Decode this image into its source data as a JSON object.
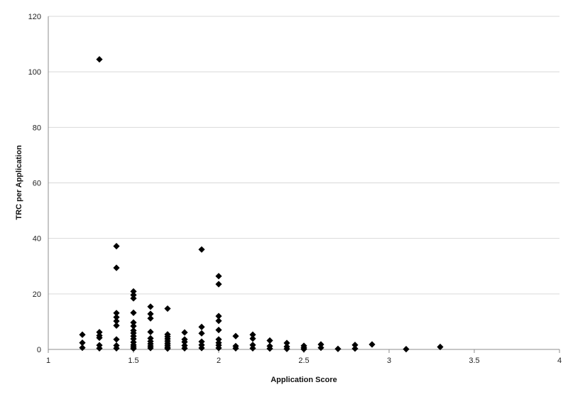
{
  "chart_data": {
    "type": "scatter",
    "title": "",
    "xlabel": "Application Score",
    "ylabel": "TRC per Application",
    "xlim": [
      1,
      4
    ],
    "ylim": [
      0,
      120
    ],
    "xticks": [
      1,
      1.5,
      2,
      2.5,
      3,
      3.5,
      4
    ],
    "xtick_labels": [
      "1",
      "1.5",
      "2",
      "2.5",
      "3",
      "3.5",
      "4"
    ],
    "yticks": [
      0,
      20,
      40,
      60,
      80,
      100,
      120
    ],
    "ytick_labels": [
      "0",
      "20",
      "40",
      "60",
      "80",
      "100",
      "120"
    ],
    "grid": "horizontal",
    "legend": "none",
    "marker": "diamond",
    "marker_color": "#000000",
    "series": [
      {
        "points": [
          [
            1.2,
            5.3
          ],
          [
            1.2,
            2.4
          ],
          [
            1.2,
            0.6
          ],
          [
            1.3,
            104.5
          ],
          [
            1.3,
            6.2
          ],
          [
            1.3,
            5.0
          ],
          [
            1.3,
            4.2
          ],
          [
            1.3,
            1.5
          ],
          [
            1.3,
            0.4
          ],
          [
            1.4,
            37.2
          ],
          [
            1.4,
            29.4
          ],
          [
            1.4,
            13.1
          ],
          [
            1.4,
            11.6
          ],
          [
            1.4,
            10.2
          ],
          [
            1.4,
            8.6
          ],
          [
            1.4,
            3.6
          ],
          [
            1.4,
            1.4
          ],
          [
            1.4,
            0.4
          ],
          [
            1.5,
            20.9
          ],
          [
            1.5,
            19.6
          ],
          [
            1.5,
            18.4
          ],
          [
            1.5,
            13.2
          ],
          [
            1.5,
            9.7
          ],
          [
            1.5,
            8.4
          ],
          [
            1.5,
            6.8
          ],
          [
            1.5,
            5.9
          ],
          [
            1.5,
            4.8
          ],
          [
            1.5,
            3.8
          ],
          [
            1.5,
            2.6
          ],
          [
            1.5,
            1.6
          ],
          [
            1.5,
            0.9
          ],
          [
            1.5,
            0.3
          ],
          [
            1.6,
            15.4
          ],
          [
            1.6,
            12.8
          ],
          [
            1.6,
            11.2
          ],
          [
            1.6,
            6.3
          ],
          [
            1.6,
            4.0
          ],
          [
            1.6,
            2.9
          ],
          [
            1.6,
            2.0
          ],
          [
            1.6,
            1.2
          ],
          [
            1.6,
            0.5
          ],
          [
            1.7,
            14.7
          ],
          [
            1.7,
            5.4
          ],
          [
            1.7,
            4.6
          ],
          [
            1.7,
            3.8
          ],
          [
            1.7,
            3.0
          ],
          [
            1.7,
            2.2
          ],
          [
            1.7,
            1.5
          ],
          [
            1.7,
            0.8
          ],
          [
            1.7,
            0.3
          ],
          [
            1.8,
            6.1
          ],
          [
            1.8,
            3.6
          ],
          [
            1.8,
            2.7
          ],
          [
            1.8,
            1.4
          ],
          [
            1.8,
            0.4
          ],
          [
            1.9,
            36.0
          ],
          [
            1.9,
            8.1
          ],
          [
            1.9,
            5.8
          ],
          [
            1.9,
            2.8
          ],
          [
            1.9,
            1.6
          ],
          [
            1.9,
            0.5
          ],
          [
            2.0,
            26.4
          ],
          [
            2.0,
            23.5
          ],
          [
            2.0,
            12.0
          ],
          [
            2.0,
            10.3
          ],
          [
            2.0,
            7.0
          ],
          [
            2.0,
            3.6
          ],
          [
            2.0,
            2.4
          ],
          [
            2.0,
            1.5
          ],
          [
            2.0,
            0.5
          ],
          [
            2.1,
            4.8
          ],
          [
            2.1,
            1.2
          ],
          [
            2.1,
            0.4
          ],
          [
            2.2,
            5.3
          ],
          [
            2.2,
            3.9
          ],
          [
            2.2,
            1.6
          ],
          [
            2.2,
            0.4
          ],
          [
            2.3,
            3.2
          ],
          [
            2.3,
            1.2
          ],
          [
            2.3,
            0.3
          ],
          [
            2.4,
            2.3
          ],
          [
            2.4,
            1.0
          ],
          [
            2.4,
            0.2
          ],
          [
            2.5,
            1.3
          ],
          [
            2.5,
            0.6
          ],
          [
            2.5,
            0.1
          ],
          [
            2.6,
            1.8
          ],
          [
            2.6,
            0.6
          ],
          [
            2.7,
            0.2
          ],
          [
            2.8,
            1.6
          ],
          [
            2.8,
            0.3
          ],
          [
            2.9,
            1.8
          ],
          [
            3.1,
            0.1
          ],
          [
            3.3,
            0.9
          ]
        ]
      }
    ]
  }
}
